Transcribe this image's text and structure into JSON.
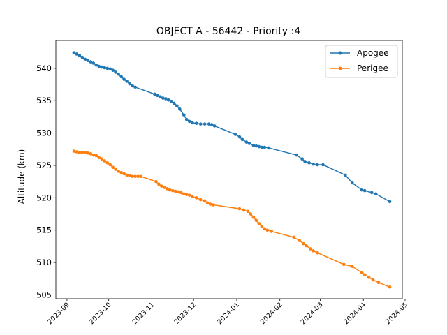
{
  "chart_data": {
    "type": "line",
    "title": "OBJECT A - 56442 - Priority :4",
    "xlabel": "",
    "ylabel": "Altitude (km)",
    "xlim": [
      "2023-08-24",
      "2024-04-29"
    ],
    "ylim": [
      504.4,
      544.3
    ],
    "x_ticks": [
      "2023-09",
      "2023-10",
      "2023-11",
      "2023-12",
      "2024-01",
      "2024-02",
      "2024-03",
      "2024-04",
      "2024-05"
    ],
    "y_ticks": [
      505,
      510,
      515,
      520,
      525,
      530,
      535,
      540
    ],
    "legend_position": "top-right",
    "grid": false,
    "series": [
      {
        "name": "Apogee",
        "color": "#1f77b4",
        "points": [
          [
            "2023-09-06",
            542.4
          ],
          [
            "2023-09-08",
            542.2
          ],
          [
            "2023-09-10",
            542.0
          ],
          [
            "2023-09-12",
            541.7
          ],
          [
            "2023-09-14",
            541.4
          ],
          [
            "2023-09-16",
            541.2
          ],
          [
            "2023-09-18",
            541.0
          ],
          [
            "2023-09-20",
            540.8
          ],
          [
            "2023-09-22",
            540.5
          ],
          [
            "2023-09-24",
            540.3
          ],
          [
            "2023-09-26",
            540.2
          ],
          [
            "2023-09-28",
            540.1
          ],
          [
            "2023-09-30",
            540.0
          ],
          [
            "2023-10-02",
            539.9
          ],
          [
            "2023-10-04",
            539.7
          ],
          [
            "2023-10-06",
            539.4
          ],
          [
            "2023-10-08",
            539.1
          ],
          [
            "2023-10-10",
            538.7
          ],
          [
            "2023-10-12",
            538.3
          ],
          [
            "2023-10-14",
            538.0
          ],
          [
            "2023-10-16",
            537.6
          ],
          [
            "2023-10-18",
            537.3
          ],
          [
            "2023-10-20",
            537.1
          ],
          [
            "2023-11-03",
            536.0
          ],
          [
            "2023-11-05",
            535.8
          ],
          [
            "2023-11-07",
            535.6
          ],
          [
            "2023-11-09",
            535.4
          ],
          [
            "2023-11-11",
            535.3
          ],
          [
            "2023-11-13",
            535.1
          ],
          [
            "2023-11-15",
            534.9
          ],
          [
            "2023-11-17",
            534.6
          ],
          [
            "2023-11-19",
            534.2
          ],
          [
            "2023-11-21",
            533.7
          ],
          [
            "2023-11-24",
            532.8
          ],
          [
            "2023-11-26",
            532.1
          ],
          [
            "2023-11-28",
            531.8
          ],
          [
            "2023-11-30",
            531.6
          ],
          [
            "2023-12-03",
            531.5
          ],
          [
            "2023-12-06",
            531.4
          ],
          [
            "2023-12-09",
            531.4
          ],
          [
            "2023-12-12",
            531.4
          ],
          [
            "2023-12-14",
            531.3
          ],
          [
            "2023-12-16",
            531.1
          ],
          [
            "2023-12-31",
            529.8
          ],
          [
            "2024-01-03",
            529.4
          ],
          [
            "2024-01-05",
            529.0
          ],
          [
            "2024-01-08",
            528.6
          ],
          [
            "2024-01-10",
            528.4
          ],
          [
            "2024-01-13",
            528.1
          ],
          [
            "2024-01-15",
            528.0
          ],
          [
            "2024-01-17",
            527.9
          ],
          [
            "2024-01-19",
            527.8
          ],
          [
            "2024-01-21",
            527.8
          ],
          [
            "2024-01-24",
            527.7
          ],
          [
            "2024-02-13",
            526.6
          ],
          [
            "2024-02-17",
            526.0
          ],
          [
            "2024-02-19",
            525.6
          ],
          [
            "2024-02-22",
            525.4
          ],
          [
            "2024-02-25",
            525.2
          ],
          [
            "2024-02-28",
            525.1
          ],
          [
            "2024-03-03",
            525.1
          ],
          [
            "2024-03-19",
            523.5
          ],
          [
            "2024-03-24",
            522.3
          ],
          [
            "2024-03-31",
            521.2
          ],
          [
            "2024-04-02",
            521.1
          ],
          [
            "2024-04-07",
            520.8
          ],
          [
            "2024-04-10",
            520.6
          ],
          [
            "2024-04-20",
            519.4
          ]
        ]
      },
      {
        "name": "Perigee",
        "color": "#ff7f0e",
        "points": [
          [
            "2023-09-06",
            527.2
          ],
          [
            "2023-09-08",
            527.1
          ],
          [
            "2023-09-10",
            527.0
          ],
          [
            "2023-09-12",
            527.0
          ],
          [
            "2023-09-14",
            527.0
          ],
          [
            "2023-09-16",
            526.9
          ],
          [
            "2023-09-18",
            526.8
          ],
          [
            "2023-09-20",
            526.6
          ],
          [
            "2023-09-22",
            526.5
          ],
          [
            "2023-09-24",
            526.2
          ],
          [
            "2023-09-26",
            526.0
          ],
          [
            "2023-09-28",
            525.7
          ],
          [
            "2023-09-30",
            525.4
          ],
          [
            "2023-10-02",
            525.1
          ],
          [
            "2023-10-04",
            524.7
          ],
          [
            "2023-10-06",
            524.4
          ],
          [
            "2023-10-08",
            524.1
          ],
          [
            "2023-10-10",
            523.9
          ],
          [
            "2023-10-12",
            523.7
          ],
          [
            "2023-10-14",
            523.5
          ],
          [
            "2023-10-16",
            523.4
          ],
          [
            "2023-10-18",
            523.3
          ],
          [
            "2023-10-20",
            523.3
          ],
          [
            "2023-10-22",
            523.3
          ],
          [
            "2023-10-24",
            523.3
          ],
          [
            "2023-11-04",
            522.5
          ],
          [
            "2023-11-06",
            522.1
          ],
          [
            "2023-11-08",
            521.8
          ],
          [
            "2023-11-10",
            521.6
          ],
          [
            "2023-11-12",
            521.4
          ],
          [
            "2023-11-14",
            521.2
          ],
          [
            "2023-11-16",
            521.1
          ],
          [
            "2023-11-18",
            521.0
          ],
          [
            "2023-11-20",
            520.9
          ],
          [
            "2023-11-22",
            520.8
          ],
          [
            "2023-11-24",
            520.6
          ],
          [
            "2023-11-26",
            520.5
          ],
          [
            "2023-11-28",
            520.4
          ],
          [
            "2023-11-30",
            520.2
          ],
          [
            "2023-12-03",
            520.0
          ],
          [
            "2023-12-06",
            519.7
          ],
          [
            "2023-12-09",
            519.5
          ],
          [
            "2023-12-11",
            519.2
          ],
          [
            "2023-12-13",
            519.0
          ],
          [
            "2023-12-15",
            518.9
          ],
          [
            "2024-01-03",
            518.3
          ],
          [
            "2024-01-06",
            518.1
          ],
          [
            "2024-01-09",
            517.9
          ],
          [
            "2024-01-11",
            517.5
          ],
          [
            "2024-01-13",
            517.0
          ],
          [
            "2024-01-15",
            516.5
          ],
          [
            "2024-01-17",
            516.0
          ],
          [
            "2024-01-19",
            515.6
          ],
          [
            "2024-01-21",
            515.2
          ],
          [
            "2024-01-23",
            515.0
          ],
          [
            "2024-01-26",
            514.8
          ],
          [
            "2024-02-11",
            513.9
          ],
          [
            "2024-02-15",
            513.4
          ],
          [
            "2024-02-18",
            512.9
          ],
          [
            "2024-02-20",
            512.6
          ],
          [
            "2024-02-23",
            512.1
          ],
          [
            "2024-02-25",
            511.8
          ],
          [
            "2024-02-28",
            511.5
          ],
          [
            "2024-03-18",
            509.7
          ],
          [
            "2024-03-24",
            509.4
          ],
          [
            "2024-03-31",
            508.4
          ],
          [
            "2024-04-02",
            508.1
          ],
          [
            "2024-04-05",
            507.7
          ],
          [
            "2024-04-08",
            507.3
          ],
          [
            "2024-04-12",
            506.9
          ],
          [
            "2024-04-20",
            506.2
          ]
        ]
      }
    ]
  }
}
